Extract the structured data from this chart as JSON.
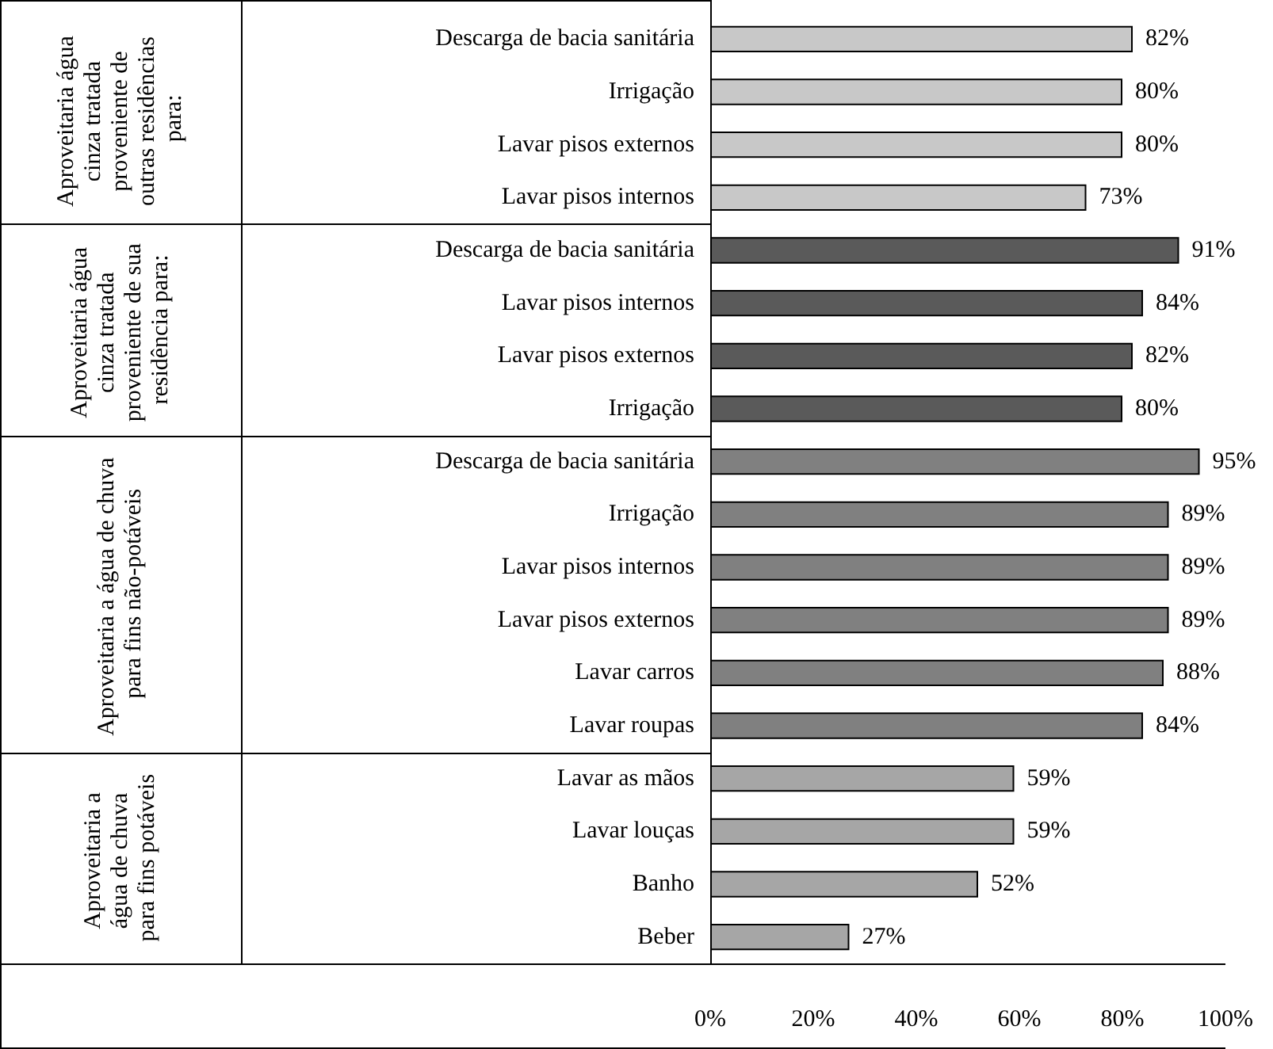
{
  "chart_data": {
    "type": "bar",
    "orientation": "horizontal",
    "categories": [
      "Descarga de bacia sanitária",
      "Irrigação",
      "Lavar pisos externos",
      "Lavar pisos internos",
      "Descarga de bacia sanitária",
      "Lavar pisos internos",
      "Lavar pisos externos",
      "Irrigação",
      "Descarga de bacia sanitária",
      "Irrigação",
      "Lavar pisos internos",
      "Lavar pisos externos",
      "Lavar carros",
      "Lavar roupas",
      "Lavar as mãos",
      "Lavar louças",
      "Banho",
      "Beber"
    ],
    "series": [
      {
        "color": "#c8c8c8",
        "values": [
          82,
          80,
          80,
          73,
          null,
          null,
          null,
          null,
          null,
          null,
          null,
          null,
          null,
          null,
          null,
          null,
          null,
          null
        ],
        "value_labels": [
          "82%",
          "80%",
          "80%",
          "73%",
          null,
          null,
          null,
          null,
          null,
          null,
          null,
          null,
          null,
          null,
          null,
          null,
          null,
          null
        ]
      },
      {
        "color": "#5a5a5a",
        "values": [
          null,
          null,
          null,
          null,
          91,
          84,
          82,
          80,
          null,
          null,
          null,
          null,
          null,
          null,
          null,
          null,
          null,
          null
        ],
        "value_labels": [
          null,
          null,
          null,
          null,
          "91%",
          "84%",
          "82%",
          "80%",
          null,
          null,
          null,
          null,
          null,
          null,
          null,
          null,
          null,
          null
        ]
      },
      {
        "color": "#808080",
        "values": [
          null,
          null,
          null,
          null,
          null,
          null,
          null,
          null,
          95,
          89,
          89,
          89,
          88,
          84,
          null,
          null,
          null,
          null
        ],
        "value_labels": [
          null,
          null,
          null,
          null,
          null,
          null,
          null,
          null,
          "95%",
          "89%",
          "89%",
          "89%",
          "88%",
          "84%",
          null,
          null,
          null,
          null
        ]
      },
      {
        "color": "#a6a6a6",
        "values": [
          null,
          null,
          null,
          null,
          null,
          null,
          null,
          null,
          null,
          null,
          null,
          null,
          null,
          null,
          59,
          59,
          52,
          27
        ],
        "value_labels": [
          null,
          null,
          null,
          null,
          null,
          null,
          null,
          null,
          null,
          null,
          null,
          null,
          null,
          null,
          "59%",
          "59%",
          "52%",
          "27%"
        ]
      }
    ],
    "xlim": [
      0,
      100
    ],
    "xticks": [
      {
        "value": 0,
        "label": "0%"
      },
      {
        "value": 20,
        "label": "20%"
      },
      {
        "value": 40,
        "label": "40%"
      },
      {
        "value": 60,
        "label": "60%"
      },
      {
        "value": 80,
        "label": "80%"
      },
      {
        "value": 100,
        "label": "100%"
      }
    ],
    "annotations": [
      "Aproveitaria água cinza tratada proveniente de outras residências para:",
      "Aproveitaria água cinza tratada proveniente de sua residência para:",
      "Aproveitaria a água de chuva para fins não-potáveis",
      "Aproveitaria a água de chuva para fins potáveis"
    ],
    "grid": false
  }
}
